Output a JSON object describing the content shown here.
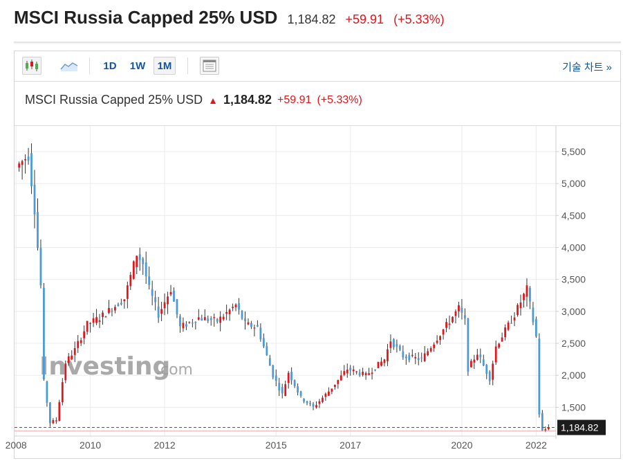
{
  "header": {
    "title": "MSCI Russia Capped 25% USD",
    "price": "1,184.82",
    "change": "+59.91",
    "change_pct": "(+5.33%)"
  },
  "toolbar": {
    "timeframes": [
      "1D",
      "1W",
      "1M"
    ],
    "selected_timeframe": "1M",
    "advanced_link": "기술 차트 »",
    "icons": [
      "candlestick-chart-icon",
      "area-chart-icon",
      "layout-icon"
    ]
  },
  "inner_header": {
    "title": "MSCI Russia Capped 25% USD",
    "arrow": "▲",
    "price": "1,184.82",
    "change": "+59.91",
    "change_pct": "(+5.33%)"
  },
  "watermark": {
    "brand": "Investing",
    "suffix": ".com"
  },
  "colors": {
    "up": "#e0161a",
    "down": "#4a9ad6",
    "accent": "#1256a0"
  },
  "chart_data": {
    "type": "candlestick",
    "title": "MSCI Russia Capped 25% USD",
    "interval": "1M",
    "yticks": [
      1500,
      2000,
      2500,
      3000,
      3500,
      4000,
      4500,
      5000,
      5500
    ],
    "ytick_labels": [
      "1,500",
      "2,000",
      "2,500",
      "3,000",
      "3,500",
      "4,000",
      "4,500",
      "5,000",
      "5,500"
    ],
    "xtick_labels": [
      "2008",
      "2010",
      "2012",
      "2015",
      "2017",
      "2020",
      "2022"
    ],
    "xtick_years": [
      2008,
      2010,
      2012,
      2015,
      2017,
      2020,
      2022
    ],
    "x_range": [
      "2008-01",
      "2022-05"
    ],
    "ylim": [
      1050,
      5900
    ],
    "last_price": 1184.82,
    "last_price_label": "1,184.82",
    "reference_line": 1128,
    "grid": true,
    "close_path": [
      [
        "2008-01",
        5250
      ],
      [
        "2008-05",
        5450
      ],
      [
        "2008-07",
        4600
      ],
      [
        "2008-09",
        3400
      ],
      [
        "2008-10",
        1900
      ],
      [
        "2008-12",
        1260
      ],
      [
        "2009-02",
        1300
      ],
      [
        "2009-05",
        2200
      ],
      [
        "2009-08",
        2400
      ],
      [
        "2009-12",
        2800
      ],
      [
        "2010-04",
        2900
      ],
      [
        "2010-08",
        3050
      ],
      [
        "2010-12",
        3200
      ],
      [
        "2011-04",
        3900
      ],
      [
        "2011-06",
        3750
      ],
      [
        "2011-08",
        3350
      ],
      [
        "2011-11",
        2950
      ],
      [
        "2012-03",
        3350
      ],
      [
        "2012-06",
        2750
      ],
      [
        "2012-12",
        2900
      ],
      [
        "2013-06",
        2850
      ],
      [
        "2013-12",
        3100
      ],
      [
        "2014-03",
        2800
      ],
      [
        "2014-07",
        2750
      ],
      [
        "2014-12",
        2000
      ],
      [
        "2015-03",
        1700
      ],
      [
        "2015-05",
        2050
      ],
      [
        "2015-09",
        1650
      ],
      [
        "2016-01",
        1500
      ],
      [
        "2016-06",
        1750
      ],
      [
        "2016-12",
        2100
      ],
      [
        "2017-06",
        2000
      ],
      [
        "2017-12",
        2250
      ],
      [
        "2018-02",
        2550
      ],
      [
        "2018-06",
        2300
      ],
      [
        "2018-12",
        2250
      ],
      [
        "2019-06",
        2650
      ],
      [
        "2019-12",
        3050
      ],
      [
        "2020-02",
        2850
      ],
      [
        "2020-03",
        2100
      ],
      [
        "2020-06",
        2350
      ],
      [
        "2020-10",
        1950
      ],
      [
        "2020-12",
        2450
      ],
      [
        "2021-06",
        2950
      ],
      [
        "2021-10",
        3350
      ],
      [
        "2021-12",
        2850
      ],
      [
        "2022-01",
        2600
      ],
      [
        "2022-02",
        1400
      ],
      [
        "2022-03",
        1125
      ],
      [
        "2022-05",
        1184.82
      ]
    ],
    "volatility": 0.045
  }
}
